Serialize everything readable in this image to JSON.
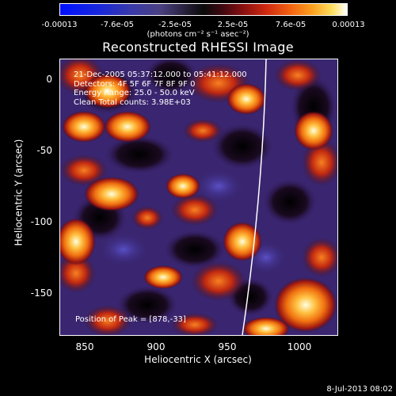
{
  "colorbar": {
    "tick_labels": [
      "-0.00013",
      "-7.6e-05",
      "-2.5e-05",
      "2.5e-05",
      "7.6e-05",
      "0.00013"
    ],
    "unit_label": "(photons cm⁻² s⁻¹ asec⁻²)"
  },
  "plot": {
    "title": "Reconstructed RHESSI Image",
    "info_lines": [
      "21-Dec-2005 05:37:12.000 to 05:41:12.000",
      "Detectors: 4F 5F 6F 7F 8F 9F 0",
      "Energy Range: 25.0 - 50.0 keV",
      "Clean     Total counts: 3.98E+03"
    ],
    "peak_label": "Position of Peak = [878,-33]",
    "x_ticks": [
      "850",
      "900",
      "950",
      "1000"
    ],
    "y_ticks": [
      "0",
      "-50",
      "-100",
      "-150"
    ],
    "x_label": "Heliocentric X (arcsec)",
    "y_label": "Heliocentric Y (arcsec)"
  },
  "footer": {
    "timestamp": "8-Jul-2013 08:02"
  },
  "colors": {
    "background": "#000000",
    "limb": "#ffffff",
    "map_low": "#2a1a5e",
    "map_high": "#ffffff"
  }
}
